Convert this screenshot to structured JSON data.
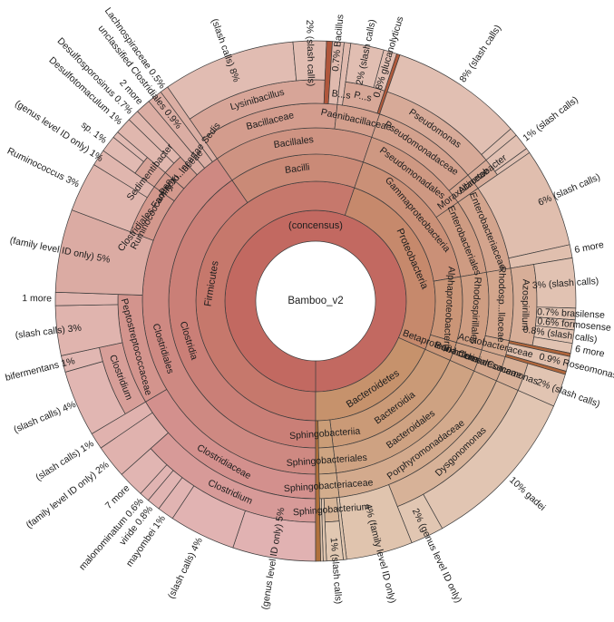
{
  "chart_data": {
    "type": "sunburst",
    "center_label": "Bamboo_v2",
    "start_angle_deg": 180,
    "direction": "clockwise",
    "legend_position": "none",
    "color_model": {
      "hue_start": 0,
      "hue_end": 28,
      "saturation": 44,
      "root_hue": 5,
      "lightness_base": 54,
      "lightness_per_depth": 3,
      "leaf_lightness_bonus": 6,
      "dark_sliver": {
        "saturation": 50,
        "lightness": 46
      },
      "stroke": "#3c3c3c",
      "label_color": "#1c1c1c",
      "background": "#ffffff"
    },
    "root": {
      "n": "(concensus)",
      "c": [
        {
          "n": "Firmicutes",
          "c": [
            {
              "n": "Clostridia",
              "c": [
                {
                  "n": "Clostridiales",
                  "c": [
                    {
                      "n": "Clostridiaceae",
                      "c": [
                        {
                          "n": "Clostridium",
                          "c": [
                            {
                              "n": "(genus level ID only)",
                              "v": 5,
                              "o": "(genus level ID only) 5%"
                            },
                            {
                              "n": "(slash calls)",
                              "v": 4,
                              "o": "(slash calls) 4%"
                            },
                            {
                              "n": "mayombei",
                              "v": 1,
                              "o": "mayombei 1%"
                            },
                            {
                              "n": "viride",
                              "v": 0.8,
                              "o": "viride 0.8%"
                            },
                            {
                              "n": "malonominatum",
                              "v": 0.6,
                              "o": "malonominatum 0.6%"
                            },
                            {
                              "n": "7 more",
                              "v": 1.6,
                              "o": "7 more"
                            }
                          ]
                        },
                        {
                          "n": "(family level ID only)",
                          "v": 2,
                          "o": "(family level ID only) 2%"
                        },
                        {
                          "n": "(slash calls)",
                          "v": 1,
                          "o": "(slash calls) 1%"
                        }
                      ]
                    },
                    {
                      "n": "Peptostreptococcaceae",
                      "c": [
                        {
                          "n": "Clostridium",
                          "c": [
                            {
                              "n": "(slash calls)",
                              "v": 4,
                              "o": "(slash calls) 4%"
                            },
                            {
                              "n": "bifermentans",
                              "v": 1,
                              "o": "bifermentans 1%"
                            }
                          ]
                        },
                        {
                          "n": "(slash calls)",
                          "v": 3,
                          "o": "(slash calls) 3%"
                        },
                        {
                          "n": "1 more",
                          "v": 0.8,
                          "o": "1 more"
                        }
                      ]
                    },
                    {
                      "n": "(family level ID only)",
                      "v": 5,
                      "o": "(family level ID only) 5%"
                    },
                    {
                      "n": "Ruminococcaceae",
                      "c": [
                        {
                          "n": "Ruminococcus",
                          "v": 3,
                          "o": "Ruminococcus 3%"
                        },
                        {
                          "n": "(genus level ID only)",
                          "v": 1,
                          "o": "(genus level ID only) 1%"
                        }
                      ]
                    },
                    {
                      "n": "Clostridiales Family XI. Incertae Sedis",
                      "c": [
                        {
                          "n": "Sedimentibacter",
                          "c": [
                            {
                              "n": "sp.",
                              "v": 1,
                              "o": "sp. 1%"
                            },
                            {
                              "n": "",
                              "v": 0.4
                            }
                          ]
                        }
                      ]
                    },
                    {
                      "n": "Pepto...aceae",
                      "c": [
                        {
                          "n": "Desulfotomaculum",
                          "v": 1,
                          "o": "Desulfotomaculum 1%"
                        },
                        {
                          "n": "Desulfosporosinus",
                          "v": 0.7,
                          "o": "Desulfosporosinus 0.7%"
                        }
                      ]
                    },
                    {
                      "n": "2 more",
                      "v": 0.9,
                      "o": "2 more"
                    },
                    {
                      "n": "unclassified Clostridiales",
                      "v": 0.9,
                      "o": "unclassified Clostridiales 0.9%"
                    },
                    {
                      "n": "Lachnospiraceae",
                      "v": 0.5,
                      "o": "Lachnospiraceae 0.5%"
                    }
                  ]
                }
              ]
            },
            {
              "n": "Bacilli",
              "c": [
                {
                  "n": "Bacillales",
                  "c": [
                    {
                      "n": "Bacillaceae",
                      "c": [
                        {
                          "n": "Lysinibacillus",
                          "c": [
                            {
                              "n": "(slash calls)",
                              "v": 8,
                              "o": "(slash calls) 8%"
                            },
                            {
                              "n": "(slash calls)",
                              "v": 2,
                              "o": "2% (slash calls)"
                            }
                          ]
                        },
                        {
                          "n": "",
                          "v": 0.35,
                          "dark": true
                        },
                        {
                          "n": "Bacillus",
                          "v": 0.7,
                          "o": "0.7% Bacillus"
                        }
                      ]
                    },
                    {
                      "n": "Paenibacillaceae",
                      "c": [
                        {
                          "n": "B...s",
                          "v": 0.4,
                          "il": true
                        },
                        {
                          "n": "P...s",
                          "il": true,
                          "c": [
                            {
                              "n": "(slash calls)",
                              "v": 2,
                              "o": "2% (slash calls)"
                            },
                            {
                              "n": "glucanolyticus",
                              "v": 0.8,
                              "o": "0.8% glucanolyticus"
                            }
                          ]
                        },
                        {
                          "n": "",
                          "v": 0.2,
                          "dark": true
                        }
                      ]
                    }
                  ]
                }
              ]
            }
          ]
        },
        {
          "n": "Proteobacteria",
          "c": [
            {
              "n": "Gammaproteobacteria",
              "c": [
                {
                  "n": "Pseudomonadales",
                  "c": [
                    {
                      "n": "Pseudomonadaceae",
                      "c": [
                        {
                          "n": "Pseudomonas",
                          "c": [
                            {
                              "n": "(slash calls)",
                              "v": 8,
                              "o": "8% (slash calls)"
                            },
                            {
                              "n": "",
                              "v": 0.5
                            }
                          ]
                        }
                      ]
                    },
                    {
                      "n": "Moraxellaceae",
                      "r": true,
                      "c": [
                        {
                          "n": "Acinetobacter",
                          "r": true,
                          "c": [
                            {
                              "n": "(slash calls)",
                              "v": 1,
                              "o": "1% (slash calls)"
                            },
                            {
                              "n": "",
                              "v": 0.3
                            }
                          ]
                        }
                      ]
                    }
                  ]
                },
                {
                  "n": "Enterobacteriales",
                  "c": [
                    {
                      "n": "Enterobacteriaceae",
                      "c": [
                        {
                          "n": "(slash calls)",
                          "v": 6,
                          "o": "6% (slash calls)"
                        },
                        {
                          "n": "6 more",
                          "v": 0.8,
                          "o": "6 more"
                        }
                      ]
                    }
                  ]
                }
              ]
            },
            {
              "n": "Alphaproteobacteria",
              "c": [
                {
                  "n": "Rhodospirillales",
                  "c": [
                    {
                      "n": "Rhodosp...llaceae",
                      "c": [
                        {
                          "n": "Azospirillum",
                          "c": [
                            {
                              "n": "(slash calls)",
                              "v": 3,
                              "o": "3% (slash calls)"
                            },
                            {
                              "n": "brasilense",
                              "v": 0.7,
                              "o": "0.7% brasilense"
                            },
                            {
                              "n": "formosense",
                              "v": 0.6,
                              "o": "0.6% formosense"
                            },
                            {
                              "n": "(slash calls)",
                              "v": 0.8,
                              "o": "0.8% (slash calls)"
                            },
                            {
                              "n": "6 more",
                              "v": 0.6,
                              "o": "6 more"
                            }
                          ]
                        }
                      ]
                    },
                    {
                      "n": "Acetobacteraceae",
                      "r": true,
                      "c": [
                        {
                          "n": "",
                          "v": 0.2,
                          "dark": true
                        },
                        {
                          "n": "Roseomonas",
                          "v": 0.9,
                          "o": "0.9% Roseomonas"
                        },
                        {
                          "n": "",
                          "v": 0.2,
                          "dark": true
                        }
                      ]
                    }
                  ]
                }
              ]
            },
            {
              "n": "Betaproteobacteria",
              "r": true,
              "c": [
                {
                  "n": "Burkholderiales",
                  "r": true,
                  "c": [
                    {
                      "n": "Comam...aceae",
                      "r": true,
                      "c": [
                        {
                          "n": "Comamonas",
                          "r": true,
                          "c": [
                            {
                              "n": "(slash calls)",
                              "v": 2,
                              "o": "2% (slash calls)"
                            }
                          ]
                        }
                      ]
                    }
                  ]
                }
              ]
            }
          ]
        },
        {
          "n": "Bacteroidetes",
          "c": [
            {
              "n": "Bacteroidia",
              "c": [
                {
                  "n": "Bacteroidales",
                  "c": [
                    {
                      "n": "Porphyromonadaceae",
                      "c": [
                        {
                          "n": "Dysgonomonas",
                          "c": [
                            {
                              "n": "gadei",
                              "v": 10,
                              "o": "10% gadei"
                            },
                            {
                              "n": "(genus level ID only)",
                              "v": 2,
                              "o": "2% (genus level ID only)"
                            }
                          ]
                        },
                        {
                          "n": "(family level ID only)",
                          "v": 4,
                          "o": "4% (family level ID only)"
                        }
                      ]
                    }
                  ]
                }
              ]
            },
            {
              "n": "Sphingobacteriia",
              "c": [
                {
                  "n": "Sphingobacteriales",
                  "c": [
                    {
                      "n": "Sphingobacteriaceae",
                      "c": [
                        {
                          "n": "",
                          "v": 0.2
                        },
                        {
                          "n": "Sphingobacterium",
                          "c": [
                            {
                              "n": "(slash calls)",
                              "v": 1,
                              "o": "1% (slash calls)"
                            }
                          ]
                        },
                        {
                          "n": "",
                          "v": 0.2
                        },
                        {
                          "n": "",
                          "v": 0.15
                        }
                      ]
                    }
                  ]
                }
              ]
            },
            {
              "n": "",
              "v": 0.3,
              "dark": true
            }
          ]
        }
      ]
    }
  }
}
